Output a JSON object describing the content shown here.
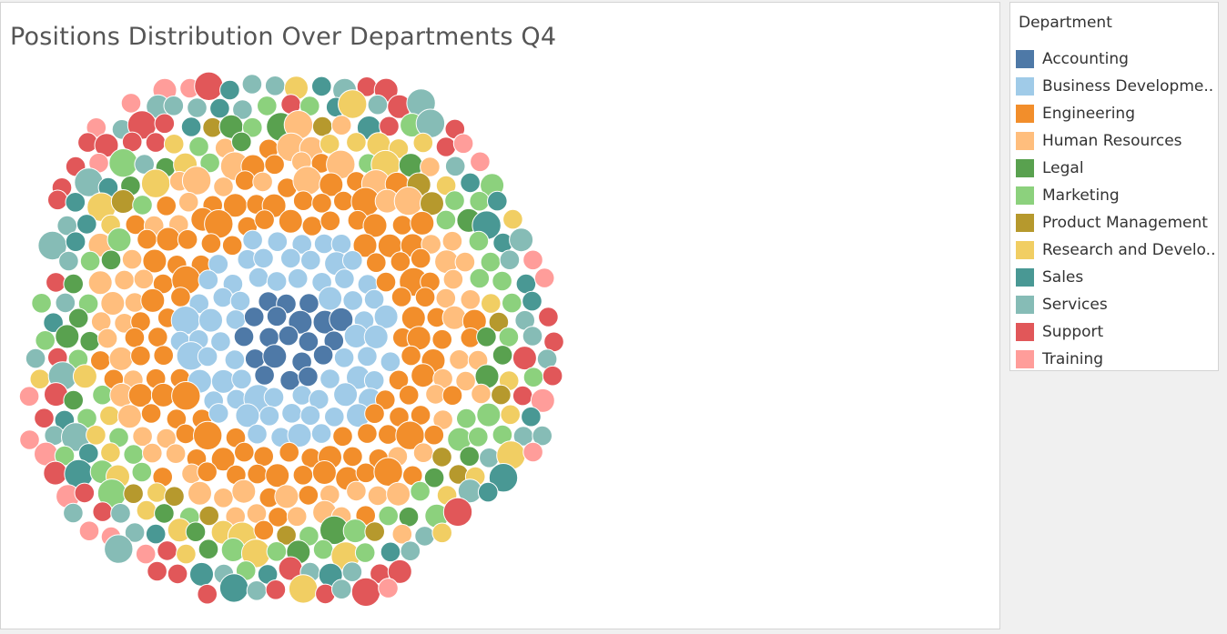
{
  "chart_data": {
    "type": "packed-bubble",
    "title": "Positions Distribution Over Departments Q4",
    "legend": {
      "title": "Department",
      "placement": "right",
      "items": [
        {
          "label": "Accounting",
          "color": "#4e79a7"
        },
        {
          "label": "Business Developme..",
          "color": "#a0cbe8"
        },
        {
          "label": "Engineering",
          "color": "#f28e2b"
        },
        {
          "label": "Human Resources",
          "color": "#ffbe7d"
        },
        {
          "label": "Legal",
          "color": "#59a14f"
        },
        {
          "label": "Marketing",
          "color": "#8cd17d"
        },
        {
          "label": "Product Management",
          "color": "#b6992d"
        },
        {
          "label": "Research and Develo..",
          "color": "#f1ce63"
        },
        {
          "label": "Sales",
          "color": "#499894"
        },
        {
          "label": "Services",
          "color": "#86bcb6"
        },
        {
          "label": "Support",
          "color": "#e15759"
        },
        {
          "label": "Training",
          "color": "#ff9d9a"
        }
      ]
    },
    "series": [
      {
        "name": "Accounting",
        "count": 14
      },
      {
        "name": "Business Developme..",
        "count": 48
      },
      {
        "name": "Engineering",
        "count": 88
      },
      {
        "name": "Human Resources",
        "count": 82
      },
      {
        "name": "Legal",
        "count": 20
      },
      {
        "name": "Marketing",
        "count": 28
      },
      {
        "name": "Product Management",
        "count": 12
      },
      {
        "name": "Research and Develo..",
        "count": 36
      },
      {
        "name": "Sales",
        "count": 22
      },
      {
        "name": "Services",
        "count": 34
      },
      {
        "name": "Support",
        "count": 50
      },
      {
        "name": "Training",
        "count": 32
      }
    ]
  }
}
